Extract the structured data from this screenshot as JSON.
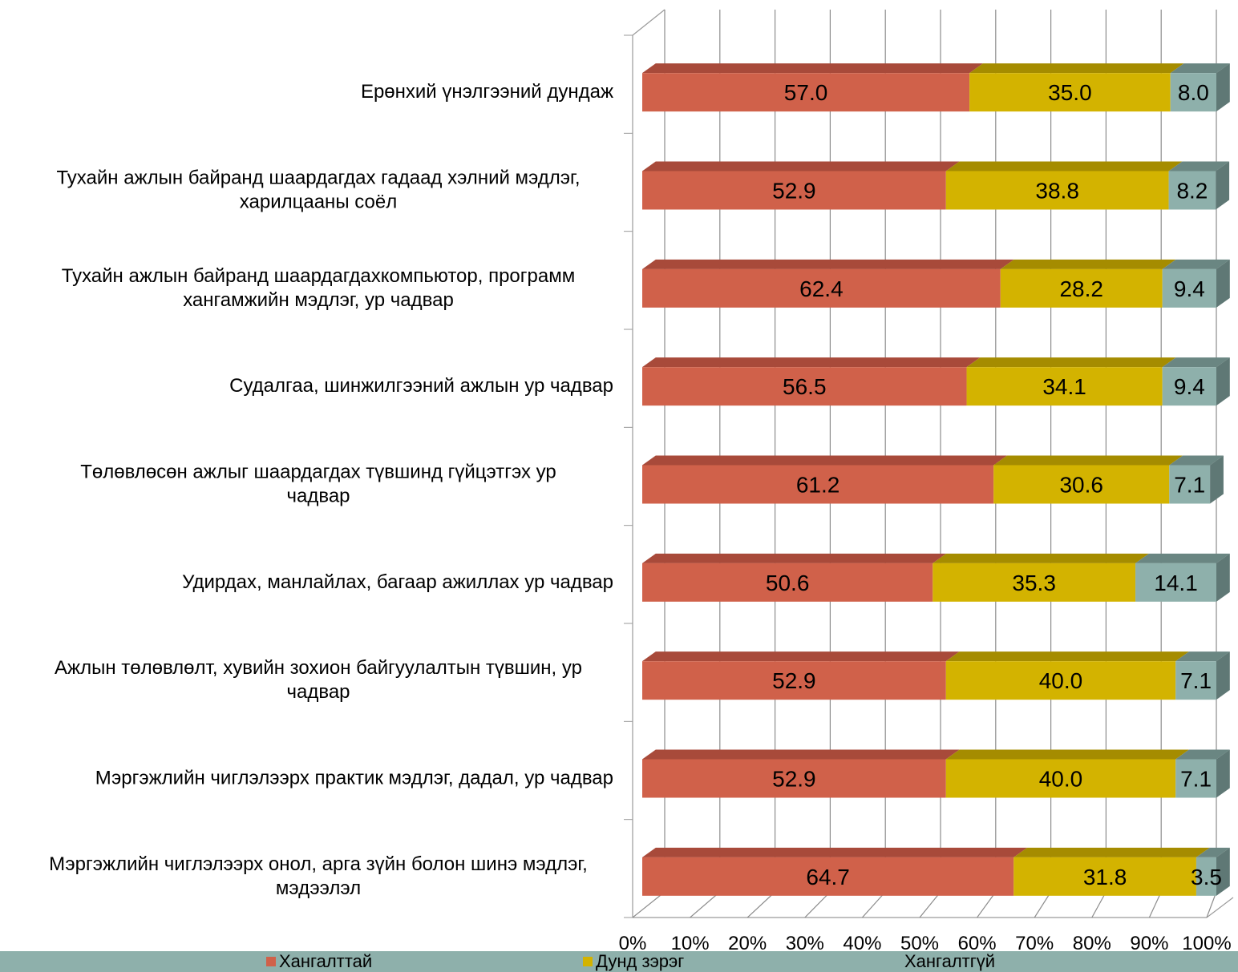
{
  "chart_data": {
    "type": "bar",
    "orientation": "horizontal",
    "stacked": "percent",
    "style": "3d",
    "categories": [
      "Ерөнхий үнэлгээний дундаж",
      "Тухайн ажлын байранд шаардагдах гадаад хэлний мэдлэг, харилцааны соёл",
      "Тухайн ажлын байранд шаардагдахкомпьютор, программ хангамжийн мэдлэг, ур чадвар",
      "Судалгаа, шинжилгээний ажлын ур чадвар",
      "Төлөвлөсөн ажлыг шаардагдах түвшинд гүйцэтгэх ур чадвар",
      "Удирдах, манлайлах, багаар ажиллах ур чадвар",
      "Ажлын төлөвлөлт, хувийн зохион байгуулалтын түвшин, ур чадвар",
      "Мэргэжлийн чиглэлээрх практик мэдлэг, дадал, ур чадвар ",
      "Мэргэжлийн чиглэлээрх онол, арга зүйн болон шинэ мэдлэг, мэдээлэл"
    ],
    "category_lines": [
      [
        "Ерөнхий үнэлгээний дундаж"
      ],
      [
        "Тухайн ажлын байранд шаардагдах гадаад хэлний мэдлэг,",
        "харилцааны соёл"
      ],
      [
        "Тухайн ажлын байранд шаардагдахкомпьютор, программ",
        "хангамжийн мэдлэг, ур чадвар"
      ],
      [
        "Судалгаа, шинжилгээний ажлын ур чадвар"
      ],
      [
        "Төлөвлөсөн ажлыг шаардагдах түвшинд гүйцэтгэх ур",
        "чадвар"
      ],
      [
        "Удирдах, манлайлах, багаар ажиллах ур чадвар"
      ],
      [
        "Ажлын төлөвлөлт, хувийн зохион байгуулалтын түвшин, ур",
        "чадвар"
      ],
      [
        "Мэргэжлийн чиглэлээрх практик мэдлэг, дадал, ур чадвар "
      ],
      [
        "Мэргэжлийн чиглэлээрх онол, арга зүйн болон шинэ мэдлэг,",
        "мэдээлэл"
      ]
    ],
    "series": [
      {
        "name": "Хангалттай",
        "values": [
          57.0,
          52.9,
          62.4,
          56.5,
          61.2,
          50.6,
          52.9,
          52.9,
          64.7
        ],
        "labels": [
          "57.0",
          "52.9",
          "62.4",
          "56.5",
          "61.2",
          "50.6",
          "52.9",
          "52.9",
          "64.7"
        ],
        "color": "#d0614a",
        "top_color": "#a84a3a"
      },
      {
        "name": "Дунд зэрэг",
        "values": [
          35.0,
          38.8,
          28.2,
          34.1,
          30.6,
          35.3,
          40.0,
          40.0,
          31.8
        ],
        "labels": [
          "35.0",
          "38.8",
          "28.2",
          "34.1",
          "30.6",
          "35.3",
          "40.0",
          "40.0",
          "31.8"
        ],
        "color": "#d3b300",
        "top_color": "#a58c00"
      },
      {
        "name": "Хангалтгүй",
        "values": [
          8.0,
          8.2,
          9.4,
          9.4,
          7.1,
          14.1,
          7.1,
          7.1,
          3.5
        ],
        "labels": [
          "8.0",
          "8.2",
          "9.4",
          "9.4",
          "7.1",
          "14.1",
          "7.1",
          "7.1",
          "3.5"
        ],
        "color": "#8eb0ab",
        "top_color": "#6a8682"
      }
    ],
    "x_ticks": [
      "0%",
      "10%",
      "20%",
      "30%",
      "40%",
      "50%",
      "60%",
      "70%",
      "80%",
      "90%",
      "100%"
    ],
    "xlim": [
      0,
      100
    ],
    "grid": true,
    "legend_position": "bottom"
  }
}
